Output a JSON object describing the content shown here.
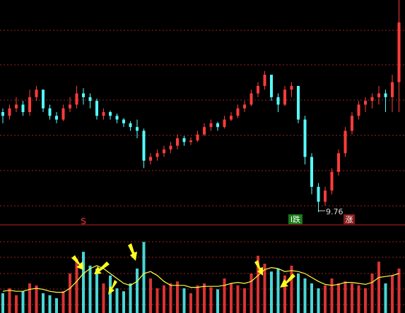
{
  "chart_data": {
    "type": "candlestick",
    "up_color": "#ff3c3c",
    "down_color": "#54fcfc",
    "volume_line_color": "#ffff40",
    "ylim": [
      9.6,
      12.6
    ],
    "volume_lim": [
      0,
      80
    ],
    "candles": [
      [
        11.1,
        11.15,
        10.95,
        11.05
      ],
      [
        11.05,
        11.2,
        11.0,
        11.15
      ],
      [
        11.15,
        11.3,
        11.1,
        11.2
      ],
      [
        11.2,
        11.25,
        11.05,
        11.1
      ],
      [
        11.1,
        11.4,
        11.05,
        11.3
      ],
      [
        11.3,
        11.45,
        11.25,
        11.4
      ],
      [
        11.4,
        11.4,
        11.1,
        11.15
      ],
      [
        11.15,
        11.2,
        11.0,
        11.05
      ],
      [
        11.05,
        11.1,
        10.95,
        11.0
      ],
      [
        11.0,
        11.2,
        10.98,
        11.15
      ],
      [
        11.15,
        11.3,
        11.1,
        11.2
      ],
      [
        11.2,
        11.45,
        11.15,
        11.35
      ],
      [
        11.35,
        11.42,
        11.2,
        11.3
      ],
      [
        11.3,
        11.35,
        11.15,
        11.25
      ],
      [
        11.25,
        11.28,
        11.0,
        11.05
      ],
      [
        11.05,
        11.15,
        11.0,
        11.1
      ],
      [
        11.1,
        11.12,
        11.0,
        11.05
      ],
      [
        11.05,
        11.08,
        10.95,
        11.0
      ],
      [
        11.0,
        11.02,
        10.9,
        10.95
      ],
      [
        10.95,
        10.98,
        10.85,
        10.9
      ],
      [
        10.9,
        11.0,
        10.75,
        10.85
      ],
      [
        10.85,
        10.88,
        10.35,
        10.45
      ],
      [
        10.45,
        10.55,
        10.4,
        10.5
      ],
      [
        10.5,
        10.6,
        10.45,
        10.55
      ],
      [
        10.55,
        10.65,
        10.5,
        10.6
      ],
      [
        10.6,
        10.7,
        10.55,
        10.65
      ],
      [
        10.65,
        10.8,
        10.6,
        10.75
      ],
      [
        10.75,
        10.78,
        10.65,
        10.7
      ],
      [
        10.7,
        10.76,
        10.66,
        10.72
      ],
      [
        10.72,
        10.85,
        10.7,
        10.8
      ],
      [
        10.8,
        10.95,
        10.78,
        10.9
      ],
      [
        10.9,
        11.0,
        10.85,
        10.95
      ],
      [
        10.95,
        10.97,
        10.85,
        10.9
      ],
      [
        10.9,
        11.05,
        10.88,
        11.0
      ],
      [
        11.0,
        11.1,
        10.98,
        11.05
      ],
      [
        11.05,
        11.2,
        11.02,
        11.15
      ],
      [
        11.15,
        11.25,
        11.1,
        11.2
      ],
      [
        11.2,
        11.4,
        11.18,
        11.35
      ],
      [
        11.35,
        11.5,
        11.3,
        11.45
      ],
      [
        11.45,
        11.65,
        11.4,
        11.6
      ],
      [
        11.6,
        11.6,
        11.25,
        11.3
      ],
      [
        11.3,
        11.35,
        11.1,
        11.2
      ],
      [
        11.2,
        11.45,
        11.18,
        11.4
      ],
      [
        11.4,
        11.5,
        11.3,
        11.45
      ],
      [
        11.45,
        11.45,
        10.95,
        11.0
      ],
      [
        11.0,
        11.05,
        10.4,
        10.5
      ],
      [
        10.5,
        10.55,
        10.0,
        10.1
      ],
      [
        10.1,
        10.15,
        9.76,
        9.9
      ],
      [
        9.9,
        10.1,
        9.85,
        10.05
      ],
      [
        10.05,
        10.35,
        10.0,
        10.3
      ],
      [
        10.3,
        10.6,
        10.25,
        10.55
      ],
      [
        10.55,
        10.9,
        10.5,
        10.85
      ],
      [
        10.85,
        11.1,
        10.8,
        11.05
      ],
      [
        11.05,
        11.25,
        11.0,
        11.2
      ],
      [
        11.2,
        11.3,
        11.1,
        11.25
      ],
      [
        11.25,
        11.35,
        11.15,
        11.3
      ],
      [
        11.3,
        11.45,
        11.2,
        11.35
      ],
      [
        11.35,
        11.4,
        11.1,
        11.3
      ],
      [
        11.3,
        11.6,
        11.1,
        11.5
      ],
      [
        11.5,
        12.6,
        11.1,
        12.3
      ]
    ],
    "volume": [
      20,
      25,
      18,
      22,
      30,
      28,
      20,
      18,
      15,
      22,
      40,
      55,
      62,
      48,
      45,
      30,
      38,
      25,
      22,
      30,
      45,
      72,
      35,
      25,
      28,
      30,
      32,
      25,
      20,
      28,
      30,
      26,
      24,
      35,
      30,
      28,
      25,
      40,
      58,
      50,
      42,
      45,
      38,
      48,
      40,
      35,
      30,
      25,
      28,
      35,
      30,
      32,
      30,
      28,
      25,
      40,
      52,
      30,
      38,
      45
    ],
    "volume_ma": [
      22,
      23,
      22,
      22,
      24,
      25,
      24,
      22,
      21,
      21,
      25,
      32,
      40,
      45,
      48,
      45,
      40,
      35,
      30,
      28,
      32,
      40,
      42,
      38,
      32,
      28,
      28,
      28,
      26,
      26,
      27,
      27,
      27,
      28,
      30,
      31,
      30,
      32,
      38,
      44,
      46,
      45,
      42,
      43,
      42,
      40,
      36,
      32,
      29,
      28,
      29,
      31,
      31,
      30,
      29,
      31,
      36,
      37,
      38,
      40
    ],
    "signals": [
      "S",
      "I跌",
      "涨"
    ]
  }
}
